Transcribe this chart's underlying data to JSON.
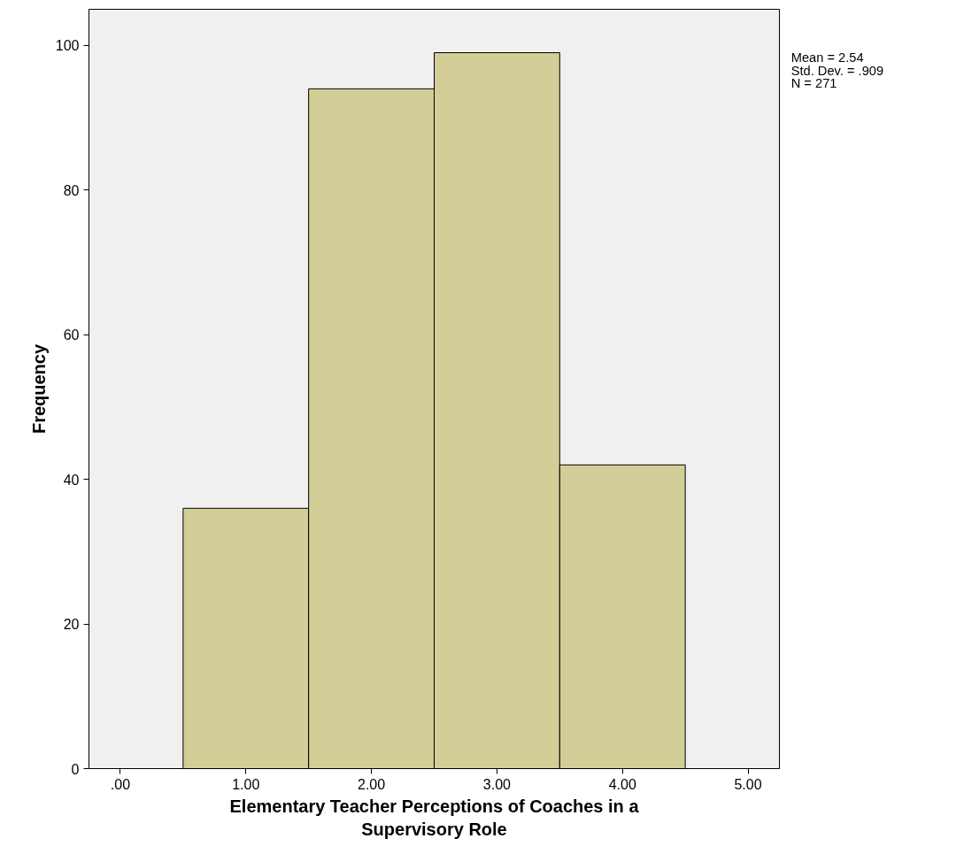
{
  "chart_data": {
    "type": "histogram",
    "xlabel": "Elementary Teacher Perceptions of Coaches in a\nSupervisory Role",
    "ylabel": "Frequency",
    "bins": [
      0.5,
      1.5,
      2.5,
      3.5,
      4.5
    ],
    "values": [
      36,
      94,
      99,
      42
    ],
    "color": "#d3ce97",
    "xlim": [
      -0.25,
      5.25
    ],
    "ylim": [
      0,
      105
    ],
    "xticks": [
      {
        "value": 0,
        "label": ".00"
      },
      {
        "value": 1,
        "label": "1.00"
      },
      {
        "value": 2,
        "label": "2.00"
      },
      {
        "value": 3,
        "label": "3.00"
      },
      {
        "value": 4,
        "label": "4.00"
      },
      {
        "value": 5,
        "label": "5.00"
      }
    ],
    "yticks": [
      0,
      20,
      40,
      60,
      80,
      100
    ],
    "annotations": [
      "Mean = 2.54",
      "Std. Dev. = .909",
      "N = 271"
    ],
    "grid": false
  }
}
